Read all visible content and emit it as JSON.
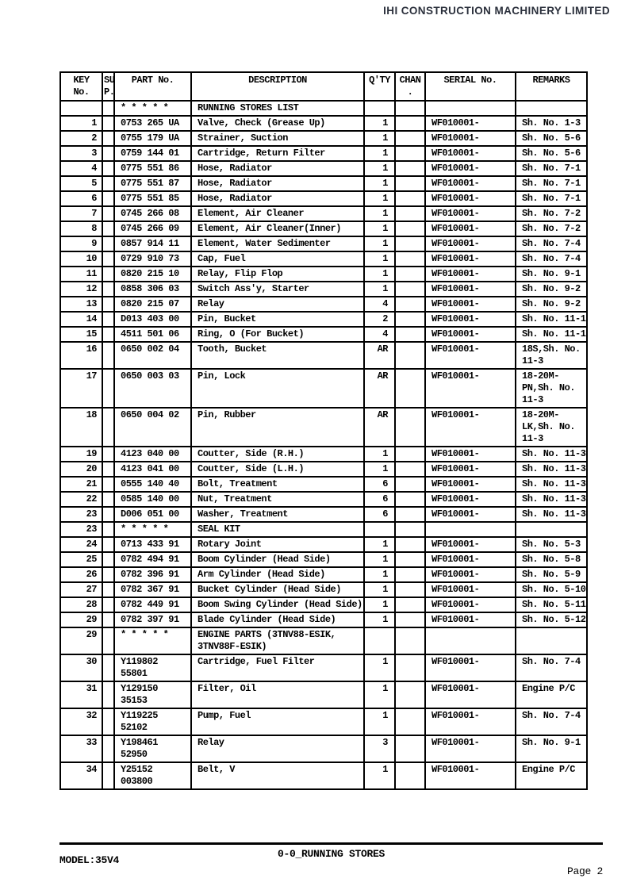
{
  "page": {
    "company": "IHI CONSTRUCTION MACHINERY LIMITED",
    "footer": {
      "model_label": "MODEL:35V4",
      "section_title": "0-0_RUNNING STORES",
      "page_label": "Page 2"
    },
    "colors": {
      "company_text": "#2b303c",
      "table_lines": "#000000",
      "background": "#ffffff"
    }
  },
  "table": {
    "columns": [
      {
        "id": "key",
        "label": [
          "KEY",
          "No."
        ]
      },
      {
        "id": "sup",
        "label": [
          "SU",
          "P."
        ]
      },
      {
        "id": "part",
        "label": [
          "PART No."
        ]
      },
      {
        "id": "description",
        "label": [
          "DESCRIPTION"
        ]
      },
      {
        "id": "qty",
        "label": [
          "Q'TY"
        ]
      },
      {
        "id": "chan",
        "label": [
          "CHAN",
          "."
        ]
      },
      {
        "id": "serial",
        "label": [
          "SERIAL No."
        ]
      },
      {
        "id": "remarks",
        "label": [
          "REMARKS"
        ]
      }
    ],
    "rows": [
      {
        "key": "",
        "sup": "",
        "part": "* * * * *",
        "description": "RUNNING STORES LIST",
        "qty": "",
        "chan": "",
        "serial": "",
        "remarks": ""
      },
      {
        "key": "1",
        "sup": "",
        "part": "0753 265 UA",
        "description": "Valve, Check (Grease Up)",
        "qty": "1",
        "chan": "",
        "serial": "WF010001-",
        "remarks": "Sh. No. 1-3"
      },
      {
        "key": "2",
        "sup": "",
        "part": "0755 179 UA",
        "description": "Strainer, Suction",
        "qty": "1",
        "chan": "",
        "serial": "WF010001-",
        "remarks": "Sh. No. 5-6"
      },
      {
        "key": "3",
        "sup": "",
        "part": "0759 144 01",
        "description": "Cartridge, Return Filter",
        "qty": "1",
        "chan": "",
        "serial": "WF010001-",
        "remarks": "Sh. No. 5-6"
      },
      {
        "key": "4",
        "sup": "",
        "part": "0775 551 86",
        "description": "Hose, Radiator",
        "qty": "1",
        "chan": "",
        "serial": "WF010001-",
        "remarks": "Sh. No. 7-1"
      },
      {
        "key": "5",
        "sup": "",
        "part": "0775 551 87",
        "description": "Hose, Radiator",
        "qty": "1",
        "chan": "",
        "serial": "WF010001-",
        "remarks": "Sh. No. 7-1"
      },
      {
        "key": "6",
        "sup": "",
        "part": "0775 551 85",
        "description": "Hose, Radiator",
        "qty": "1",
        "chan": "",
        "serial": "WF010001-",
        "remarks": "Sh. No. 7-1"
      },
      {
        "key": "7",
        "sup": "",
        "part": "0745 266 08",
        "description": "Element, Air Cleaner",
        "qty": "1",
        "chan": "",
        "serial": "WF010001-",
        "remarks": "Sh. No. 7-2"
      },
      {
        "key": "8",
        "sup": "",
        "part": "0745 266 09",
        "description": "Element, Air Cleaner(Inner)",
        "qty": "1",
        "chan": "",
        "serial": "WF010001-",
        "remarks": "Sh. No. 7-2"
      },
      {
        "key": "9",
        "sup": "",
        "part": "0857 914 11",
        "description": "Element, Water Sedimenter",
        "qty": "1",
        "chan": "",
        "serial": "WF010001-",
        "remarks": "Sh. No. 7-4"
      },
      {
        "key": "10",
        "sup": "",
        "part": "0729 910 73",
        "description": "Cap, Fuel",
        "qty": "1",
        "chan": "",
        "serial": "WF010001-",
        "remarks": "Sh. No. 7-4"
      },
      {
        "key": "11",
        "sup": "",
        "part": "0820 215 10",
        "description": "Relay, Flip Flop",
        "qty": "1",
        "chan": "",
        "serial": "WF010001-",
        "remarks": "Sh. No. 9-1"
      },
      {
        "key": "12",
        "sup": "",
        "part": "0858 306 03",
        "description": "Switch Ass'y, Starter",
        "qty": "1",
        "chan": "",
        "serial": "WF010001-",
        "remarks": "Sh. No. 9-2"
      },
      {
        "key": "13",
        "sup": "",
        "part": "0820 215 07",
        "description": "Relay",
        "qty": "4",
        "chan": "",
        "serial": "WF010001-",
        "remarks": "Sh. No. 9-2"
      },
      {
        "key": "14",
        "sup": "",
        "part": "D013 403 00",
        "description": "Pin, Bucket",
        "qty": "2",
        "chan": "",
        "serial": "WF010001-",
        "remarks": "Sh. No. 11-1"
      },
      {
        "key": "15",
        "sup": "",
        "part": "4511 501 06",
        "description": "Ring, O (For Bucket)",
        "qty": "4",
        "chan": "",
        "serial": "WF010001-",
        "remarks": "Sh. No. 11-1"
      },
      {
        "key": "16",
        "sup": "",
        "part": "0650 002 04",
        "description": "Tooth, Bucket",
        "qty": "AR",
        "chan": "",
        "serial": "WF010001-",
        "remarks": [
          "18S,Sh. No.",
          "11-3"
        ]
      },
      {
        "key": "17",
        "sup": "",
        "part": "0650 003 03",
        "description": "Pin, Lock",
        "qty": "AR",
        "chan": "",
        "serial": "WF010001-",
        "remarks": [
          "18-20M-",
          "PN,Sh. No.",
          "11-3"
        ]
      },
      {
        "key": "18",
        "sup": "",
        "part": "0650 004 02",
        "description": "Pin, Rubber",
        "qty": "AR",
        "chan": "",
        "serial": "WF010001-",
        "remarks": [
          "18-20M-",
          "LK,Sh. No.",
          "11-3"
        ]
      },
      {
        "key": "19",
        "sup": "",
        "part": "4123 040 00",
        "description": "Coutter, Side (R.H.)",
        "qty": "1",
        "chan": "",
        "serial": "WF010001-",
        "remarks": "Sh. No. 11-3"
      },
      {
        "key": "20",
        "sup": "",
        "part": "4123 041 00",
        "description": "Coutter, Side (L.H.)",
        "qty": "1",
        "chan": "",
        "serial": "WF010001-",
        "remarks": "Sh. No. 11-3"
      },
      {
        "key": "21",
        "sup": "",
        "part": "0555 140 40",
        "description": "Bolt, Treatment",
        "qty": "6",
        "chan": "",
        "serial": "WF010001-",
        "remarks": "Sh. No. 11-3"
      },
      {
        "key": "22",
        "sup": "",
        "part": "0585 140 00",
        "description": "Nut, Treatment",
        "qty": "6",
        "chan": "",
        "serial": "WF010001-",
        "remarks": "Sh. No. 11-3"
      },
      {
        "key": "23",
        "sup": "",
        "part": "D006 051 00",
        "description": "Washer, Treatment",
        "qty": "6",
        "chan": "",
        "serial": "WF010001-",
        "remarks": "Sh. No. 11-3"
      },
      {
        "key": "23",
        "sup": "",
        "part": "* * * * *",
        "description": "SEAL KIT",
        "qty": "",
        "chan": "",
        "serial": "",
        "remarks": ""
      },
      {
        "key": "24",
        "sup": "",
        "part": "0713 433 91",
        "description": "Rotary Joint",
        "qty": "1",
        "chan": "",
        "serial": "WF010001-",
        "remarks": "Sh. No. 5-3"
      },
      {
        "key": "25",
        "sup": "",
        "part": "0782 494 91",
        "description": "Boom Cylinder (Head Side)",
        "qty": "1",
        "chan": "",
        "serial": "WF010001-",
        "remarks": "Sh. No. 5-8"
      },
      {
        "key": "26",
        "sup": "",
        "part": "0782 396 91",
        "description": "Arm Cylinder (Head Side)",
        "qty": "1",
        "chan": "",
        "serial": "WF010001-",
        "remarks": "Sh. No. 5-9"
      },
      {
        "key": "27",
        "sup": "",
        "part": "0782 367 91",
        "description": "Bucket Cylinder (Head Side)",
        "qty": "1",
        "chan": "",
        "serial": "WF010001-",
        "remarks": "Sh. No. 5-10"
      },
      {
        "key": "28",
        "sup": "",
        "part": "0782 449 91",
        "description": "Boom Swing Cylinder (Head Side)",
        "qty": "1",
        "chan": "",
        "serial": "WF010001-",
        "remarks": "Sh. No. 5-11"
      },
      {
        "key": "29",
        "sup": "",
        "part": "0782 397 91",
        "description": "Blade Cylinder (Head Side)",
        "qty": "1",
        "chan": "",
        "serial": "WF010001-",
        "remarks": "Sh. No. 5-12"
      },
      {
        "key": "29",
        "sup": "",
        "part": "* * * * *",
        "description": [
          "ENGINE PARTS (3TNV88-ESIK,",
          "3TNV88F-ESIK)"
        ],
        "qty": "",
        "chan": "",
        "serial": "",
        "remarks": ""
      },
      {
        "key": "30",
        "sup": "",
        "part": [
          "Y119802",
          "55801"
        ],
        "description": "Cartridge, Fuel Filter",
        "qty": "1",
        "chan": "",
        "serial": "WF010001-",
        "remarks": "Sh. No. 7-4"
      },
      {
        "key": "31",
        "sup": "",
        "part": [
          "Y129150",
          "35153"
        ],
        "description": "Filter, Oil",
        "qty": "1",
        "chan": "",
        "serial": "WF010001-",
        "remarks": "Engine P/C"
      },
      {
        "key": "32",
        "sup": "",
        "part": [
          "Y119225",
          "52102"
        ],
        "description": "Pump, Fuel",
        "qty": "1",
        "chan": "",
        "serial": "WF010001-",
        "remarks": "Sh. No. 7-4"
      },
      {
        "key": "33",
        "sup": "",
        "part": [
          "Y198461",
          "52950"
        ],
        "description": "Relay",
        "qty": "3",
        "chan": "",
        "serial": "WF010001-",
        "remarks": "Sh. No. 9-1"
      },
      {
        "key": "34",
        "sup": "",
        "part": [
          "Y25152",
          "003800"
        ],
        "description": "Belt, V",
        "qty": "1",
        "chan": "",
        "serial": "WF010001-",
        "remarks": "Engine P/C"
      }
    ]
  }
}
